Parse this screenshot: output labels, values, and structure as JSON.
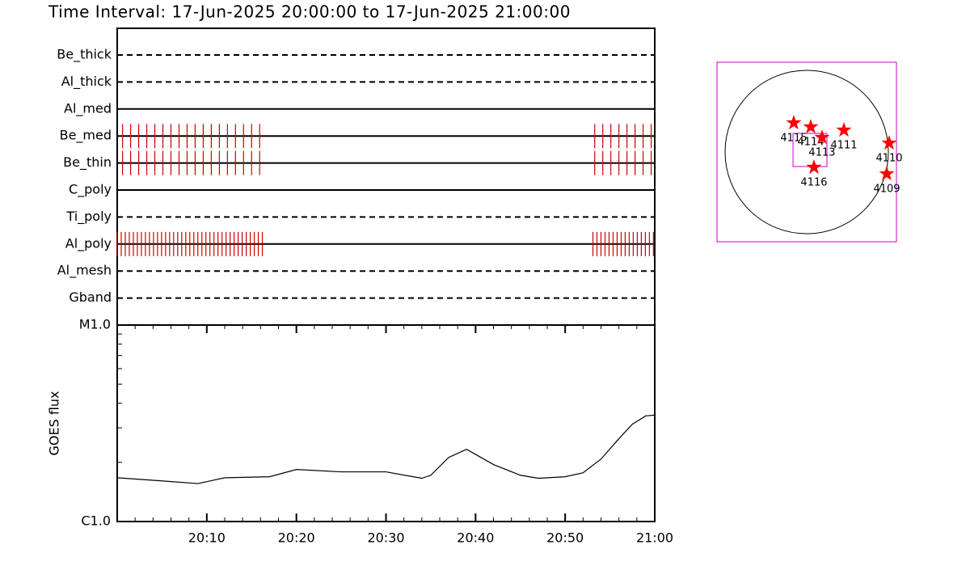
{
  "title": "Time Interval: 17-Jun-2025 20:00:00 to 17-Jun-2025 21:00:00",
  "chart_data": [
    {
      "type": "timeline",
      "categories": [
        "Be_thick",
        "Al_thick",
        "Al_med",
        "Be_med",
        "Be_thin",
        "C_poly",
        "Ti_poly",
        "Al_poly",
        "Al_mesh",
        "Gband"
      ],
      "dashed": [
        true,
        true,
        false,
        false,
        false,
        false,
        true,
        false,
        true,
        true
      ],
      "color": "#cc0000",
      "xlim": [
        0,
        60
      ],
      "x": [
        [],
        [],
        [],
        [
          0.6,
          1.5,
          2.4,
          3.3,
          4.2,
          5.1,
          6.0,
          6.9,
          7.8,
          8.7,
          9.6,
          10.5,
          11.4,
          12.3,
          13.2,
          14.1,
          15.0,
          15.9,
          53.3,
          54.2,
          55.1,
          56.0,
          56.9,
          57.8,
          58.7,
          59.6
        ],
        [
          0.6,
          1.5,
          2.4,
          3.3,
          4.2,
          5.1,
          6.0,
          6.9,
          7.8,
          8.7,
          9.6,
          10.5,
          11.4,
          12.3,
          13.2,
          14.1,
          15.0,
          15.9,
          53.3,
          54.2,
          55.1,
          56.0,
          56.9,
          57.8,
          58.7,
          59.6
        ],
        [],
        [],
        [
          0,
          0.45,
          0.9,
          1.35,
          1.8,
          2.25,
          2.7,
          3.15,
          3.6,
          4.05,
          4.5,
          4.95,
          5.4,
          5.85,
          6.3,
          6.75,
          7.2,
          7.65,
          8.1,
          8.55,
          9.0,
          9.45,
          9.9,
          10.35,
          10.8,
          11.25,
          11.7,
          12.15,
          12.6,
          13.05,
          13.5,
          13.95,
          14.4,
          14.85,
          15.3,
          15.75,
          16.2,
          53.1,
          53.55,
          54,
          54.45,
          54.9,
          55.35,
          55.8,
          56.25,
          56.7,
          57.15,
          57.6,
          58.05,
          58.5,
          58.95,
          59.4,
          59.85
        ],
        [],
        []
      ]
    },
    {
      "type": "line",
      "ylabel": "GOES flux",
      "color": "#000000",
      "log_y": true,
      "x": [
        0,
        5,
        9,
        12,
        17,
        20,
        25,
        30,
        34,
        35,
        37,
        39,
        42,
        45,
        47,
        50,
        52,
        54,
        56,
        57.5,
        59,
        60
      ],
      "values": [
        1.67e-06,
        1.61e-06,
        1.56e-06,
        1.67e-06,
        1.69e-06,
        1.84e-06,
        1.79e-06,
        1.79e-06,
        1.66e-06,
        1.72e-06,
        2.12e-06,
        2.33e-06,
        1.95e-06,
        1.72e-06,
        1.66e-06,
        1.69e-06,
        1.77e-06,
        2.08e-06,
        2.64e-06,
        3.13e-06,
        3.45e-06,
        3.48e-06
      ],
      "xlim": [
        0,
        60
      ],
      "xticks": [
        {
          "value": 10,
          "label": "20:10"
        },
        {
          "value": 20,
          "label": "20:20"
        },
        {
          "value": 30,
          "label": "20:30"
        },
        {
          "value": 40,
          "label": "20:40"
        },
        {
          "value": 50,
          "label": "20:50"
        },
        {
          "value": 60,
          "label": "21:00"
        }
      ],
      "ylim": [
        1e-06,
        1e-05
      ],
      "yticks": [
        {
          "value": 1e-06,
          "label": "C1.0"
        },
        {
          "value": 1e-05,
          "label": "M1.0"
        }
      ]
    },
    {
      "type": "map",
      "color": "#ff0000",
      "box_color": "#cc00cc",
      "xlim": [
        -1100,
        1100
      ],
      "ylim": [
        -1100,
        1100
      ],
      "labels": [
        "4115",
        "4114",
        "4113",
        "4111",
        "4110",
        "4109",
        "4116"
      ],
      "x": [
        -159,
        50,
        188,
        456,
        1011,
        981,
        89
      ],
      "y": [
        357,
        307,
        178,
        268,
        109,
        -268,
        -188
      ],
      "fov": {
        "xlim": [
          -168,
          248
        ],
        "ylim": [
          -178,
          228
        ]
      }
    }
  ]
}
